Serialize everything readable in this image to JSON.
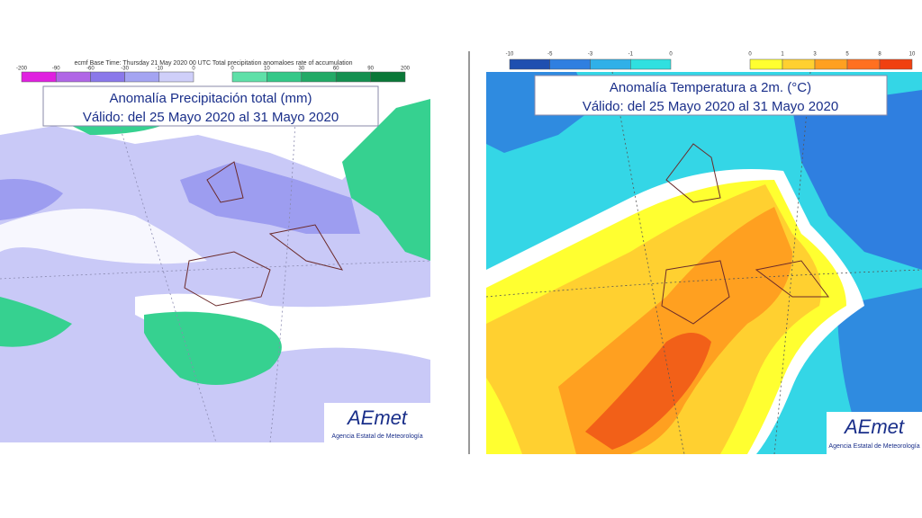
{
  "left_map": {
    "header": "ecmf Base Time: Thursday 21 May 2020 00 UTC Total precipitation anomaloes rate of accumulation",
    "legend": {
      "negative": {
        "labels": [
          "-200",
          "-90",
          "-60",
          "-30",
          "-10",
          "0"
        ],
        "colors": [
          "#e020e0",
          "#b066e6",
          "#8a78ea",
          "#a4a4f2",
          "#cfcff9"
        ]
      },
      "positive": {
        "labels": [
          "0",
          "10",
          "30",
          "60",
          "90",
          "200"
        ],
        "colors": [
          "#5fe0a8",
          "#34c888",
          "#22aa66",
          "#149050",
          "#0a7838"
        ]
      }
    },
    "title": "Anomalía Precipitación total (mm)",
    "subtitle": "Válido: del 25 Mayo 2020 al 31 Mayo 2020",
    "logo": "AEmet",
    "logo_caption": "Agencia Estatal de Meteorología"
  },
  "right_map": {
    "legend": {
      "negative": {
        "labels": [
          "-10",
          "-5",
          "-3",
          "-1",
          "0"
        ],
        "colors": [
          "#1f4fb0",
          "#2f7fe0",
          "#30b0e8",
          "#30e0e0"
        ]
      },
      "positive": {
        "labels": [
          "0",
          "1",
          "3",
          "5",
          "8",
          "10"
        ],
        "colors": [
          "#ffff30",
          "#ffd030",
          "#ffa020",
          "#ff7020",
          "#f04010"
        ]
      }
    },
    "title": "Anomalía Temperatura a 2m. (°C)",
    "subtitle": "Válido: del 25 Mayo 2020 al 31 Mayo 2020",
    "logo": "AEmet",
    "logo_caption": "Agencia Estatal de Meteorología"
  }
}
